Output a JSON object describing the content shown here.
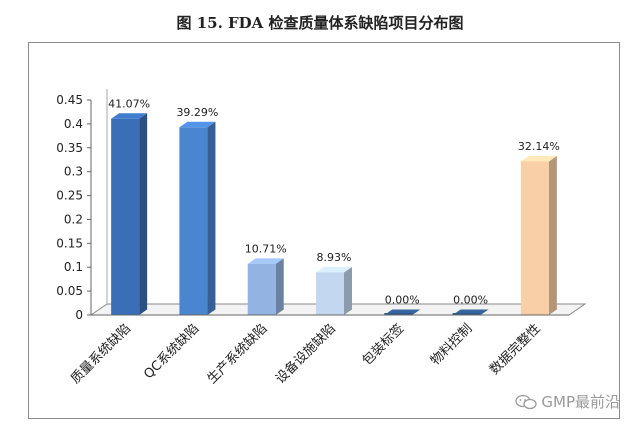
{
  "title": "图 15. FDA 检查质量体系缺陷项目分布图",
  "watermark": "GMP最前沿",
  "chart_data": {
    "type": "bar",
    "categories": [
      "质量系统缺陷",
      "QC系统缺陷",
      "生产系统缺陷",
      "设备设施缺陷",
      "包装标签",
      "物料控制",
      "数据完整性"
    ],
    "values": [
      0.4107,
      0.3929,
      0.1071,
      0.0893,
      0.0,
      0.0,
      0.3214
    ],
    "data_labels": [
      "41.07%",
      "39.29%",
      "10.71%",
      "8.93%",
      "0.00%",
      "0.00%",
      "32.14%"
    ],
    "ylim": [
      0,
      0.45
    ],
    "yticks": [
      0,
      0.05,
      0.1,
      0.15,
      0.2,
      0.25,
      0.3,
      0.35,
      0.4,
      0.45
    ],
    "ytick_labels": [
      "0",
      "0.05",
      "0.1",
      "0.15",
      "0.2",
      "0.25",
      "0.3",
      "0.35",
      "0.4",
      "0.45"
    ],
    "bar_colors": [
      "#3a6fb8",
      "#4a86d0",
      "#93b3e3",
      "#c4d7f0",
      "#2f5b8c",
      "#2f5b8c",
      "#f8cfa6"
    ],
    "grid": false,
    "legend": "none"
  }
}
